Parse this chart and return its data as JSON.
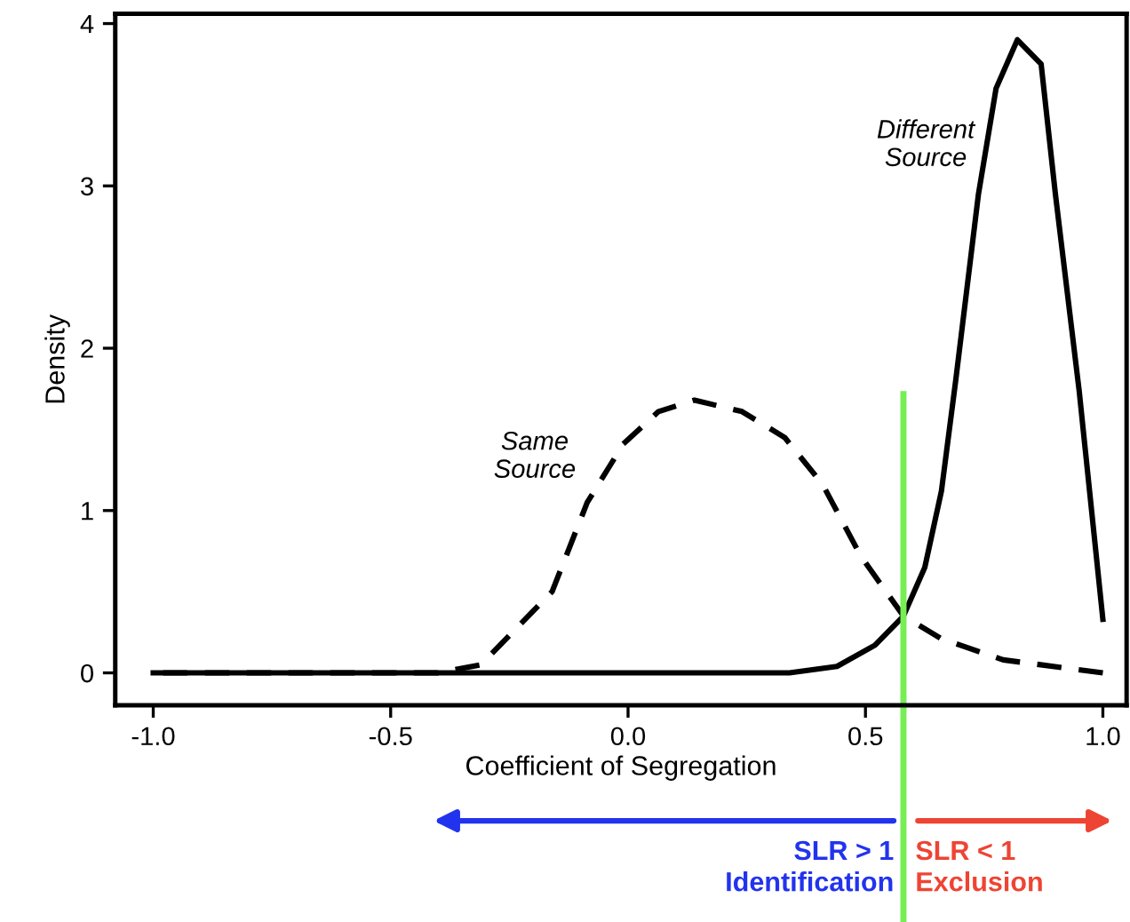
{
  "chart_data": {
    "type": "line",
    "xlabel": "Coefficient of Segregation",
    "ylabel": "Density",
    "series": [
      {
        "name": "Same Source",
        "color": "#000000",
        "line_style": "dashed",
        "x": [
          -1.0,
          -0.6,
          -0.4,
          -0.31,
          -0.16,
          -0.086,
          -0.01,
          0.064,
          0.14,
          0.24,
          0.33,
          0.41,
          0.49,
          0.58,
          0.66,
          0.79,
          1.0
        ],
        "values": [
          0,
          0,
          0,
          0.05,
          0.5,
          1.05,
          1.41,
          1.61,
          1.68,
          1.61,
          1.45,
          1.16,
          0.72,
          0.35,
          0.21,
          0.08,
          0
        ]
      },
      {
        "name": "Different Source",
        "color": "#000000",
        "line_style": "solid",
        "x": [
          -1.0,
          0.34,
          0.44,
          0.52,
          0.58,
          0.625,
          0.66,
          0.69,
          0.738,
          0.775,
          0.82,
          0.87,
          0.9,
          0.95,
          1.0
        ],
        "values": [
          0,
          0,
          0.04,
          0.17,
          0.35,
          0.65,
          1.12,
          1.8,
          2.95,
          3.6,
          3.9,
          3.75,
          2.95,
          1.74,
          0.33
        ]
      }
    ],
    "xlim": [
      -1.08,
      1.05
    ],
    "ylim": [
      -0.2,
      4.06
    ],
    "xticks": [
      {
        "value": -1.0,
        "label": "-1.0"
      },
      {
        "value": -0.5,
        "label": "-0.5"
      },
      {
        "value": 0.0,
        "label": "0.0"
      },
      {
        "value": 0.5,
        "label": "0.5"
      },
      {
        "value": 1.0,
        "label": "1.0"
      }
    ],
    "yticks": [
      0,
      1,
      2,
      3,
      4
    ],
    "ref_lines": [
      {
        "axis": "x",
        "value": 0.58,
        "color": "#77ee55"
      }
    ],
    "annotations": [
      "SLR > 1\nIdentification",
      "SLR < 1\nExclusion"
    ],
    "grid": false,
    "legend": false
  }
}
